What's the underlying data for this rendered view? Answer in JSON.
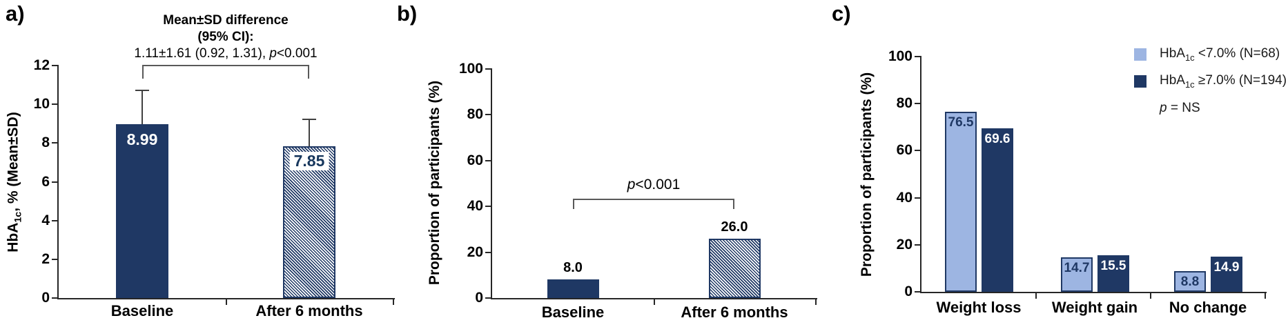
{
  "figure": {
    "panel_labels": [
      "a)",
      "b)",
      "c)"
    ]
  },
  "chart_data": [
    {
      "type": "bar",
      "panel": "a",
      "title_line1": "Mean±SD difference",
      "title_line2": "(95% CI):",
      "stat": {
        "pre": "1.11±1.61 (0.92, 1.31), ",
        "italic": "p",
        "post": "<0.001"
      },
      "ylabel": "HbA1c, % (Mean±SD)",
      "ylabel_parts": {
        "pre": "HbA",
        "sub": "1c",
        "post": ", % (Mean±SD)"
      },
      "categories": [
        "Baseline",
        "After 6 months"
      ],
      "values": [
        8.99,
        7.85
      ],
      "value_labels": [
        "8.99",
        "7.85"
      ],
      "error_bar_top": [
        10.7,
        9.2
      ],
      "bar_styles": [
        "solid",
        "hatched"
      ],
      "bar_color": "#1f3864",
      "ylim": [
        0,
        12
      ],
      "yticks": [
        0,
        2,
        4,
        6,
        8,
        10,
        12
      ],
      "grid": false
    },
    {
      "type": "bar",
      "panel": "b",
      "ylabel": "Proportion of participants (%)",
      "categories": [
        "Baseline",
        "After 6 months"
      ],
      "values": [
        8.0,
        26.0
      ],
      "value_labels": [
        "8.0",
        "26.0"
      ],
      "bar_styles": [
        "solid",
        "hatched"
      ],
      "bar_color": "#1f3864",
      "significance": {
        "italic": "p",
        "post": "<0.001"
      },
      "ylim": [
        0,
        100
      ],
      "yticks": [
        0,
        20,
        40,
        60,
        80,
        100
      ],
      "grid": false
    },
    {
      "type": "bar",
      "panel": "c",
      "ylabel": "Proportion of participants (%)",
      "categories": [
        "Weight loss",
        "Weight gain",
        "No change"
      ],
      "series": [
        {
          "name": "HbA1c <7.0% (N=68)",
          "label_parts": {
            "pre": "HbA",
            "sub": "1c",
            "post": " <7.0% (N=68)"
          },
          "color": "#9db5e2",
          "values": [
            76.5,
            14.7,
            8.8
          ],
          "value_labels": [
            "76.5",
            "14.7",
            "8.8"
          ]
        },
        {
          "name": "HbA1c ≥7.0% (N=194)",
          "label_parts": {
            "pre": "HbA",
            "sub": "1c",
            "post": " ≥7.0% (N=194)"
          },
          "color": "#1f3864",
          "values": [
            69.6,
            15.5,
            14.9
          ],
          "value_labels": [
            "69.6",
            "15.5",
            "14.9"
          ]
        }
      ],
      "note": {
        "italic": "p",
        "post": " = NS"
      },
      "legend_position": "top-right",
      "ylim": [
        0,
        100
      ],
      "yticks": [
        0,
        20,
        40,
        60,
        80,
        100
      ],
      "grid": false
    }
  ]
}
